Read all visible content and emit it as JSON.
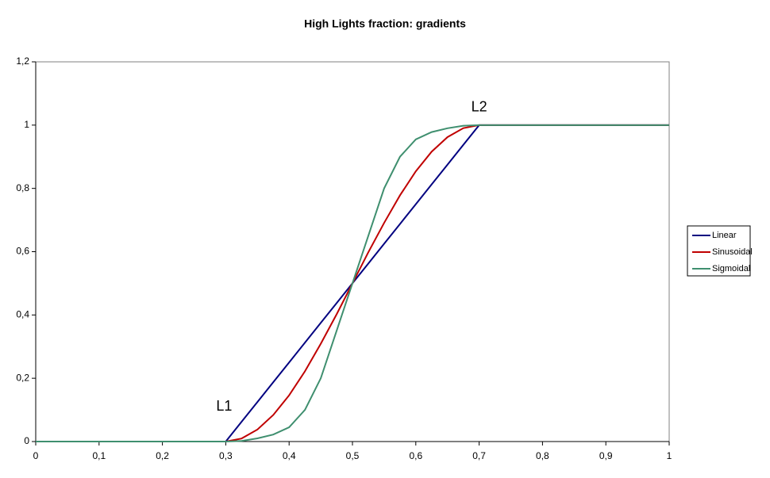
{
  "chart_data": {
    "type": "line",
    "title": "High Lights fraction: gradients",
    "x": [
      0,
      0.025,
      0.05,
      0.075,
      0.1,
      0.125,
      0.15,
      0.175,
      0.2,
      0.225,
      0.25,
      0.275,
      0.3,
      0.325,
      0.35,
      0.375,
      0.4,
      0.425,
      0.45,
      0.475,
      0.5,
      0.525,
      0.55,
      0.575,
      0.6,
      0.625,
      0.65,
      0.675,
      0.7,
      0.725,
      0.75,
      0.775,
      0.8,
      0.825,
      0.85,
      0.875,
      0.9,
      0.925,
      0.95,
      0.975,
      1
    ],
    "series": [
      {
        "name": "Linear",
        "color": "#000080",
        "values": [
          0,
          0,
          0,
          0,
          0,
          0,
          0,
          0,
          0,
          0,
          0,
          0,
          0,
          0.0625,
          0.125,
          0.1875,
          0.25,
          0.3125,
          0.375,
          0.4375,
          0.5,
          0.5625,
          0.625,
          0.6875,
          0.75,
          0.8125,
          0.875,
          0.9375,
          1,
          1,
          1,
          1,
          1,
          1,
          1,
          1,
          1,
          1,
          1,
          1,
          1
        ]
      },
      {
        "name": "Sinusoidal",
        "color": "#c00000",
        "values": [
          0,
          0,
          0,
          0,
          0,
          0,
          0,
          0,
          0,
          0,
          0,
          0,
          0,
          0.0096,
          0.038,
          0.084,
          0.146,
          0.222,
          0.309,
          0.402,
          0.5,
          0.598,
          0.691,
          0.778,
          0.854,
          0.916,
          0.962,
          0.9904,
          1,
          1,
          1,
          1,
          1,
          1,
          1,
          1,
          1,
          1,
          1,
          1,
          1
        ]
      },
      {
        "name": "Sigmoidal",
        "color": "#3f8f6f",
        "values": [
          0,
          0,
          0,
          0,
          0,
          0,
          0,
          0,
          0,
          0,
          0,
          0,
          0,
          0.002,
          0.01,
          0.022,
          0.045,
          0.1,
          0.2,
          0.35,
          0.5,
          0.65,
          0.8,
          0.9,
          0.955,
          0.978,
          0.99,
          0.998,
          1,
          1,
          1,
          1,
          1,
          1,
          1,
          1,
          1,
          1,
          1,
          1,
          1
        ]
      }
    ],
    "xlim": [
      0,
      1
    ],
    "xticks": [
      0,
      {
        "value": 0.1,
        "label": "0,1"
      },
      {
        "value": 0.2,
        "label": "0,2"
      },
      {
        "value": 0.3,
        "label": "0,3"
      },
      {
        "value": 0.4,
        "label": "0,4"
      },
      {
        "value": 0.5,
        "label": "0,5"
      },
      {
        "value": 0.6,
        "label": "0,6"
      },
      {
        "value": 0.7,
        "label": "0,7"
      },
      {
        "value": 0.8,
        "label": "0,8"
      },
      {
        "value": 0.9,
        "label": "0,9"
      },
      1
    ],
    "ylim": [
      0,
      1.2
    ],
    "yticks": [
      0,
      {
        "value": 0.2,
        "label": "0,2"
      },
      {
        "value": 0.4,
        "label": "0,4"
      },
      {
        "value": 0.6,
        "label": "0,6"
      },
      {
        "value": 0.8,
        "label": "0,8"
      },
      1,
      {
        "value": 1.2,
        "label": "1,2"
      }
    ],
    "annotations": [
      {
        "text": "L1",
        "x": 0.3,
        "y": 0
      },
      {
        "text": "L2",
        "x": 0.7,
        "y": 1
      }
    ],
    "legend": "right"
  }
}
